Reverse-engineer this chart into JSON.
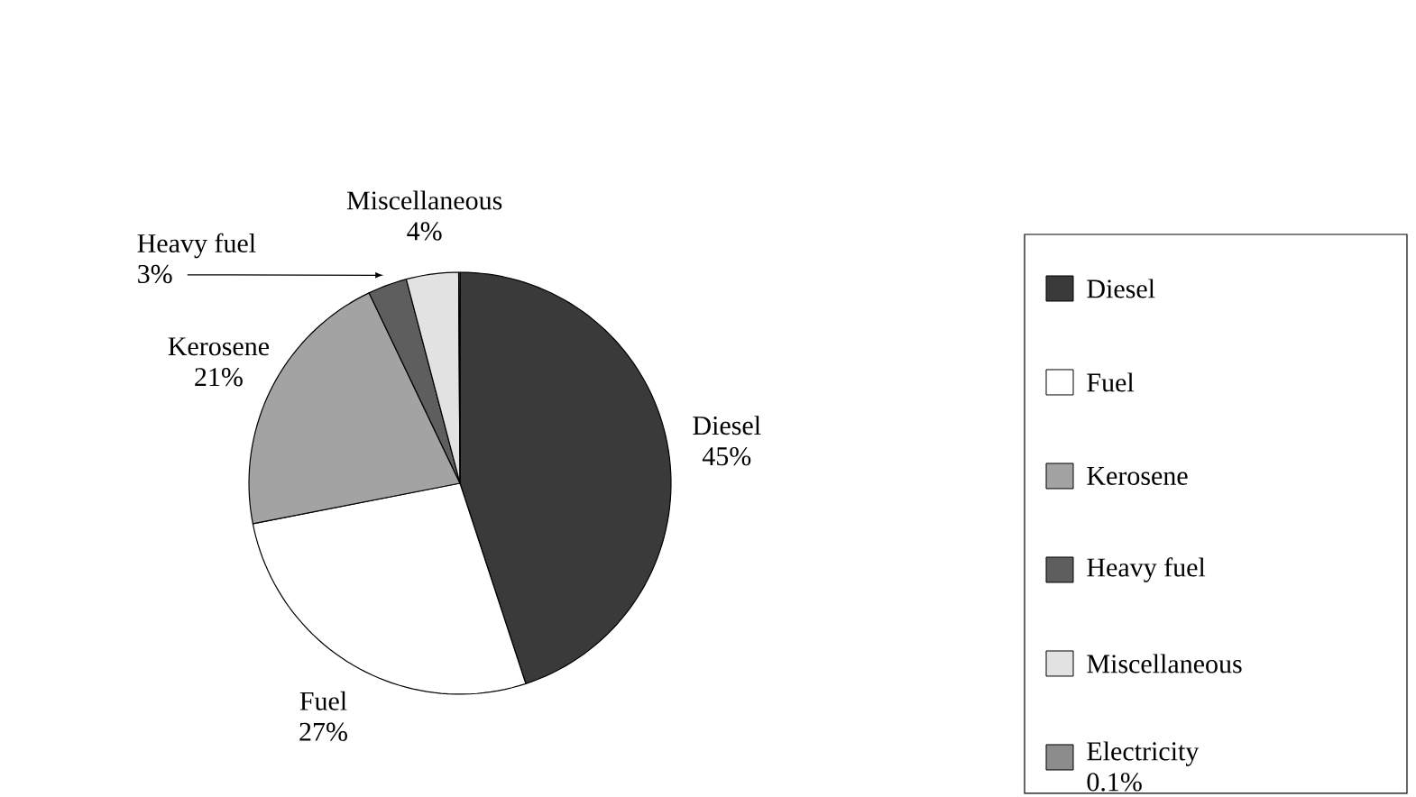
{
  "chart_data": {
    "type": "pie",
    "categories": [
      "Diesel",
      "Fuel",
      "Kerosene",
      "Heavy fuel",
      "Miscellaneous",
      "Electricity"
    ],
    "values": [
      45,
      27,
      21,
      3,
      4,
      0.1
    ],
    "value_labels": [
      "45%",
      "27%",
      "21%",
      "3%",
      "4%",
      "0.1%"
    ],
    "colors": [
      "#3a3a3a",
      "#ffffff",
      "#a3a3a3",
      "#5e5e5e",
      "#e2e2e2",
      "#8c8c8c"
    ],
    "legend": "right"
  }
}
